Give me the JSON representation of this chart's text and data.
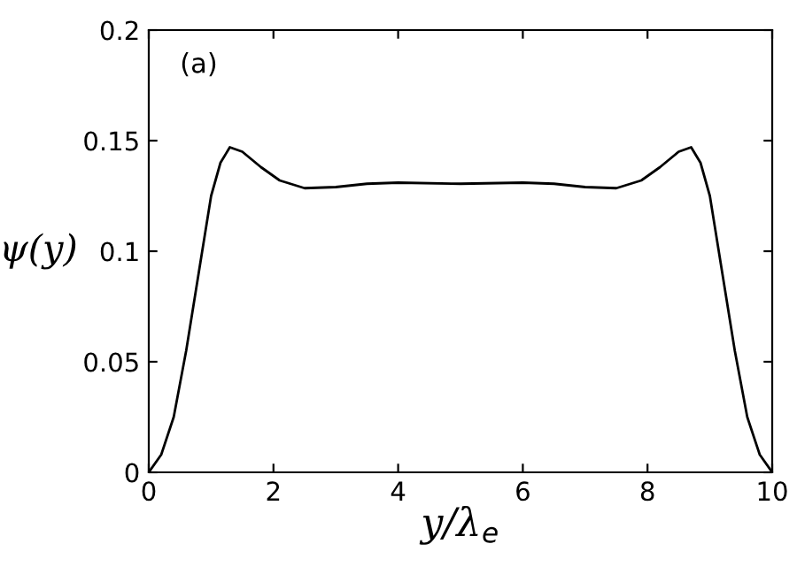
{
  "chart_data": {
    "type": "line",
    "xlabel": "y/λ$_{e}$",
    "ylabel": "ψ(y)",
    "annotations": [
      "(a)"
    ],
    "x": [
      0,
      0.2,
      0.4,
      0.6,
      0.8,
      1.0,
      1.15,
      1.3,
      1.5,
      1.8,
      2.1,
      2.5,
      3.0,
      3.5,
      4.0,
      5.0,
      6.0,
      6.5,
      7.0,
      7.5,
      7.9,
      8.2,
      8.5,
      8.7,
      8.85,
      9.0,
      9.2,
      9.4,
      9.6,
      9.8,
      10
    ],
    "series": [
      {
        "color": "#000000",
        "values": [
          0,
          0.008,
          0.025,
          0.055,
          0.09,
          0.125,
          0.14,
          0.147,
          0.145,
          0.138,
          0.132,
          0.1285,
          0.129,
          0.1305,
          0.131,
          0.1305,
          0.131,
          0.1305,
          0.129,
          0.1285,
          0.132,
          0.138,
          0.145,
          0.147,
          0.14,
          0.125,
          0.09,
          0.055,
          0.025,
          0.008,
          0
        ]
      }
    ],
    "xlim": [
      0,
      10
    ],
    "ylim": [
      0,
      0.2
    ],
    "xticks": [
      0,
      2,
      4,
      6,
      8,
      10
    ],
    "yticks": [
      0,
      0.05,
      0.1,
      0.15,
      0.2
    ],
    "grid": false,
    "marker": "none",
    "line_style": "solid"
  }
}
